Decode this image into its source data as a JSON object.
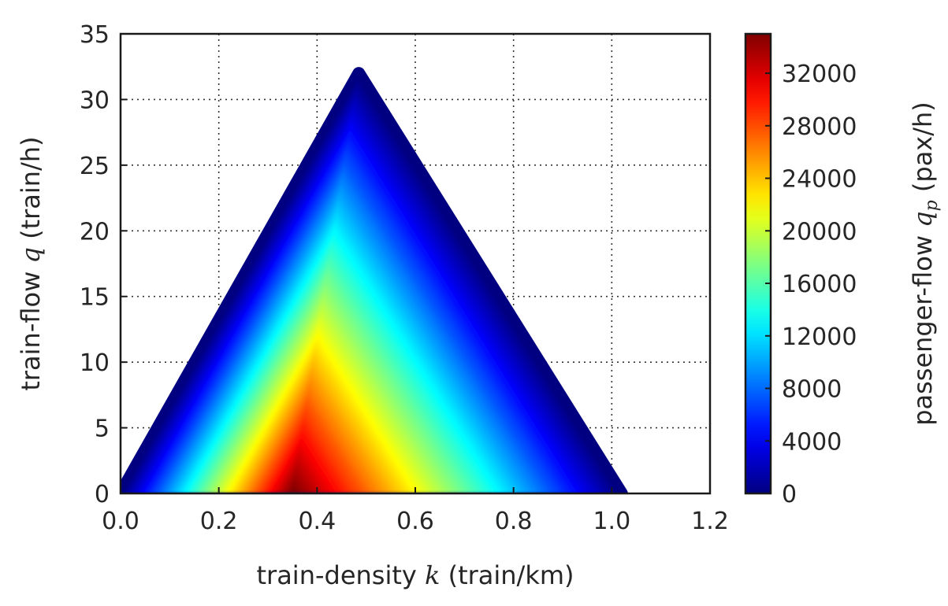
{
  "chart_data": {
    "type": "heatmap",
    "title": "",
    "xlabel": "train-density",
    "xlabel_symbol": "k",
    "xlabel_unit": "(train/km)",
    "ylabel": "train-flow",
    "ylabel_symbol": "q",
    "ylabel_unit": "(train/h)",
    "colorbar_label": "passenger-flow",
    "colorbar_symbol": "q",
    "colorbar_subscript": "p",
    "colorbar_unit": "(pax/h)",
    "xlim": [
      0.0,
      1.2
    ],
    "ylim": [
      0,
      35
    ],
    "xticks": [
      "0.0",
      "0.2",
      "0.4",
      "0.6",
      "0.8",
      "1.0",
      "1.2"
    ],
    "yticks": [
      "0",
      "5",
      "10",
      "15",
      "20",
      "25",
      "30",
      "35"
    ],
    "colorbar_range": [
      0,
      35000
    ],
    "colorbar_ticks": [
      "0",
      "4000",
      "8000",
      "12000",
      "16000",
      "20000",
      "24000",
      "28000",
      "32000"
    ],
    "colormap": "jet",
    "grid": true,
    "region": {
      "shape": "triangle",
      "vertices": [
        [
          0.0,
          0
        ],
        [
          0.485,
          32
        ],
        [
          1.02,
          0
        ]
      ],
      "peak_passenger_flow": 35000,
      "peak_location": [
        0.35,
        0
      ]
    }
  }
}
